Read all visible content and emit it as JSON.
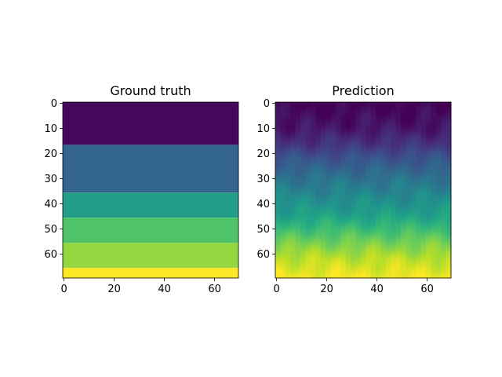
{
  "chart_data": [
    {
      "type": "heatmap",
      "title": "Ground truth",
      "colormap": "viridis",
      "color_range": [
        0,
        1
      ],
      "grid": false,
      "xlim": [
        -0.5,
        69.5
      ],
      "ylim": [
        69.5,
        -0.5
      ],
      "x_ticks": [
        0,
        20,
        40,
        60
      ],
      "x_tick_labels": [
        "0",
        "20",
        "40",
        "60"
      ],
      "y_ticks": [
        0,
        10,
        20,
        30,
        40,
        50,
        60
      ],
      "y_tick_labels": [
        "0",
        "10",
        "20",
        "30",
        "40",
        "50",
        "60"
      ],
      "layers": [
        {
          "row_start": 0,
          "row_end": 17,
          "value": 0.02
        },
        {
          "row_start": 17,
          "row_end": 36,
          "value": 0.32
        },
        {
          "row_start": 36,
          "row_end": 46,
          "value": 0.55
        },
        {
          "row_start": 46,
          "row_end": 56,
          "value": 0.72
        },
        {
          "row_start": 56,
          "row_end": 66,
          "value": 0.84
        },
        {
          "row_start": 66,
          "row_end": 70,
          "value": 1.0
        }
      ]
    },
    {
      "type": "heatmap",
      "title": "Prediction",
      "colormap": "viridis",
      "color_range": [
        0,
        1
      ],
      "grid": false,
      "xlim": [
        -0.5,
        69.5
      ],
      "ylim": [
        69.5,
        -0.5
      ],
      "x_ticks": [
        0,
        20,
        40,
        60
      ],
      "x_tick_labels": [
        "0",
        "20",
        "40",
        "60"
      ],
      "y_ticks": [
        0,
        10,
        20,
        30,
        40,
        50,
        60
      ],
      "y_tick_labels": [
        "0",
        "10",
        "20",
        "30",
        "40",
        "50",
        "60"
      ],
      "depth_profile": [
        {
          "row": 0,
          "value": 0.0
        },
        {
          "row": 10,
          "value": 0.06
        },
        {
          "row": 17,
          "value": 0.16
        },
        {
          "row": 22,
          "value": 0.26
        },
        {
          "row": 30,
          "value": 0.38
        },
        {
          "row": 38,
          "value": 0.48
        },
        {
          "row": 44,
          "value": 0.56
        },
        {
          "row": 50,
          "value": 0.68
        },
        {
          "row": 56,
          "value": 0.8
        },
        {
          "row": 62,
          "value": 0.9
        },
        {
          "row": 69,
          "value": 0.98
        }
      ]
    }
  ]
}
